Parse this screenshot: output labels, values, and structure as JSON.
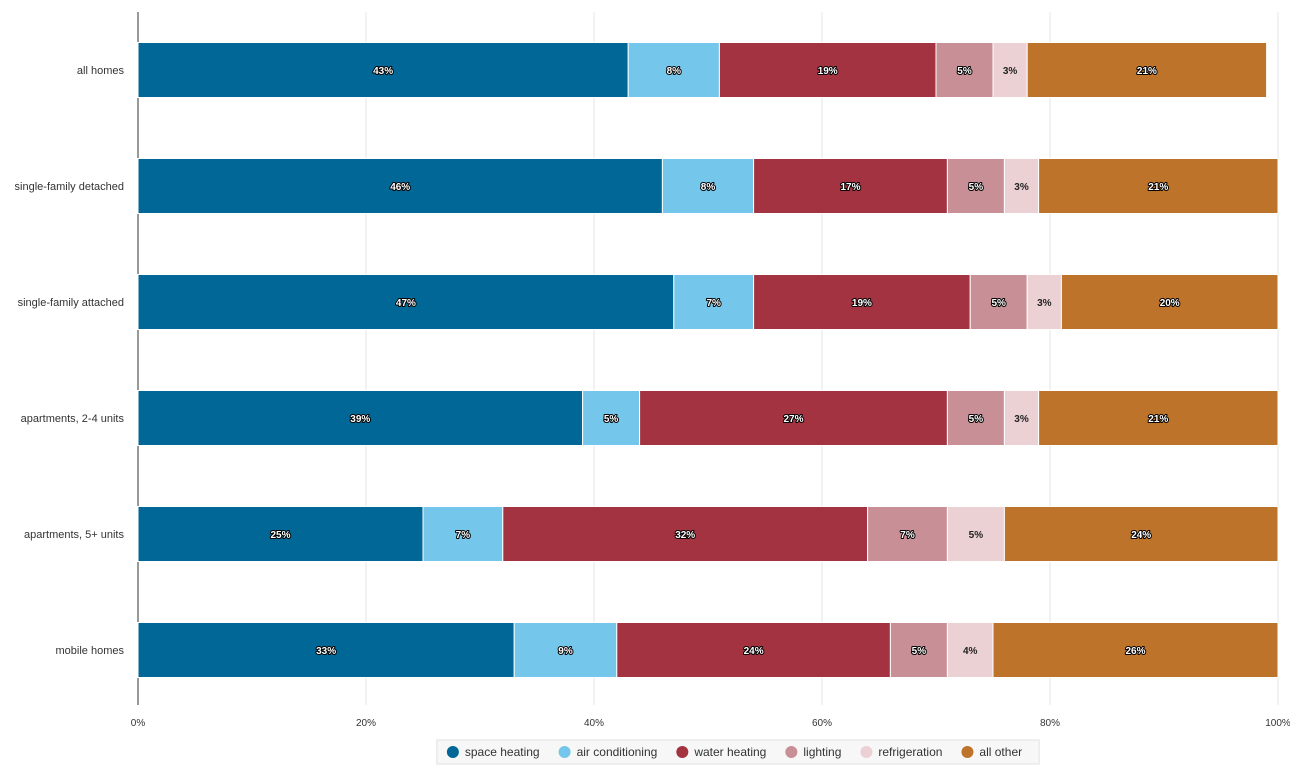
{
  "chart_data": {
    "type": "bar",
    "orientation": "horizontal",
    "stacked": true,
    "categories": [
      "all homes",
      "single-family detached",
      "single-family attached",
      "apartments, 2-4 units",
      "apartments, 5+ units",
      "mobile homes"
    ],
    "series": [
      {
        "name": "space heating",
        "color": "#006796",
        "values": [
          43,
          46,
          47,
          39,
          25,
          33
        ],
        "labels": [
          "43%",
          "46%",
          "47%",
          "39%",
          "25%",
          "33%"
        ]
      },
      {
        "name": "air conditioning",
        "color": "#74c6ea",
        "values": [
          8,
          8,
          7,
          5,
          7,
          9
        ],
        "labels": [
          "8%",
          "8%",
          "7%",
          "5%",
          "7%",
          "9%"
        ]
      },
      {
        "name": "water heating",
        "color": "#a33340",
        "values": [
          19,
          17,
          19,
          27,
          32,
          24
        ],
        "labels": [
          "19%",
          "17%",
          "19%",
          "27%",
          "32%",
          "24%"
        ]
      },
      {
        "name": "lighting",
        "color": "#c98f96",
        "values": [
          5,
          5,
          5,
          5,
          7,
          5
        ],
        "labels": [
          "5%",
          "5%",
          "5%",
          "5%",
          "7%",
          "5%"
        ]
      },
      {
        "name": "refrigeration",
        "color": "#ebd0d4",
        "values": [
          3,
          3,
          3,
          3,
          5,
          4
        ],
        "labels": [
          "3%",
          "3%",
          "3%",
          "3%",
          "5%",
          "4%"
        ]
      },
      {
        "name": "all other",
        "color": "#bd732a",
        "values": [
          21,
          21,
          20,
          21,
          24,
          26
        ],
        "labels": [
          "21%",
          "21%",
          "20%",
          "21%",
          "24%",
          "26%"
        ]
      }
    ],
    "xlim": [
      0,
      100
    ],
    "x_ticks": [
      0,
      20,
      40,
      60,
      80,
      100
    ],
    "x_tick_labels": [
      "0%",
      "20%",
      "40%",
      "60%",
      "80%",
      "100%"
    ],
    "grid": true,
    "legend_position": "bottom",
    "title": "",
    "xlabel": "",
    "ylabel": ""
  }
}
